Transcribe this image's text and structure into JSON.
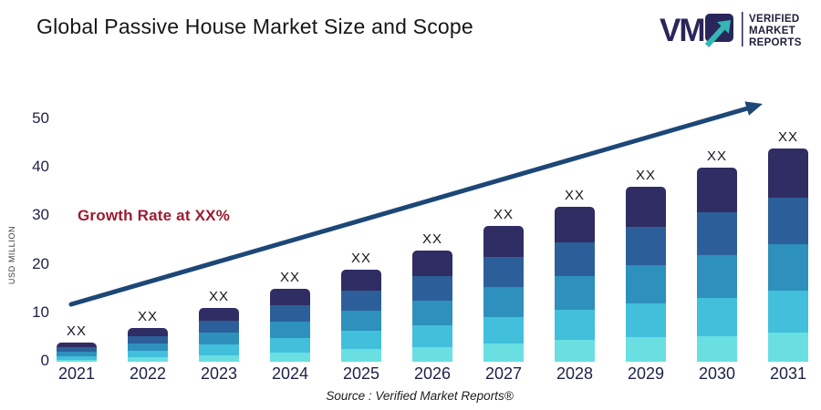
{
  "header": {
    "title": "Global Passive House Market Size and Scope",
    "logo": {
      "mark": "VM",
      "lines": [
        "VERIFIED",
        "MARKET",
        "REPORTS"
      ]
    }
  },
  "annotations": {
    "growth_label": "Growth Rate at XX%",
    "source": "Source :  Verified Market Reports®"
  },
  "colors": {
    "segments": [
      "#2F2D63",
      "#2C5F99",
      "#2E90BC",
      "#41BFDB",
      "#6ADFE2"
    ],
    "trend_arrow": "#1C4777",
    "growth_label": "#9C1B30",
    "axis_text": "#1D2145",
    "logo_navy": "#29265A",
    "logo_teal": "#35B7B4"
  },
  "chart_data": {
    "type": "bar",
    "stacked": true,
    "title": "Global Passive House Market Size and Scope",
    "ylabel": "USD MILLION",
    "xlabel": "",
    "categories": [
      "2021",
      "2022",
      "2023",
      "2024",
      "2025",
      "2026",
      "2027",
      "2028",
      "2029",
      "2030",
      "2031"
    ],
    "values": [
      4,
      7,
      11,
      15,
      19,
      23,
      28,
      32,
      36,
      40,
      44
    ],
    "segment_fractions": [
      0.23,
      0.22,
      0.22,
      0.195,
      0.135
    ],
    "bar_value_label": "XX",
    "yticks": [
      0,
      10,
      20,
      30,
      40,
      50
    ],
    "ylim": [
      0,
      55
    ],
    "grid": false,
    "legend": false,
    "trend_arrow": true
  }
}
